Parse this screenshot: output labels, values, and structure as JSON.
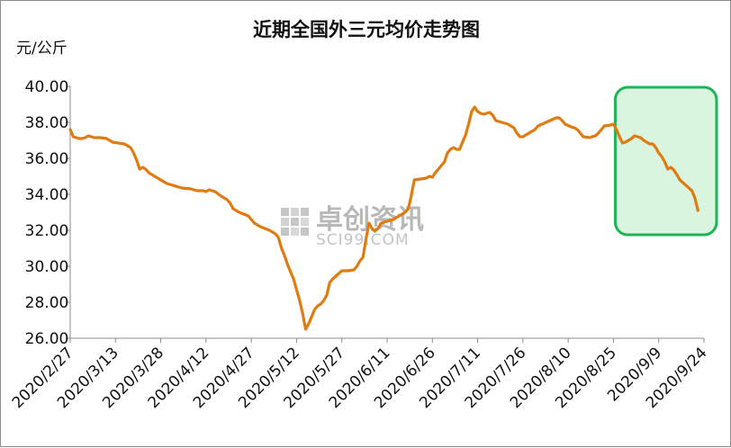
{
  "chart_data": {
    "type": "line",
    "title": "近期全国外三元均价走势图",
    "ylabel": "元/公斤",
    "xlabel": "",
    "ylim": [
      26,
      40
    ],
    "yticks": [
      "26.00",
      "28.00",
      "30.00",
      "32.00",
      "34.00",
      "36.00",
      "38.00",
      "40.00"
    ],
    "xticks": [
      "2020/2/27",
      "2020/3/13",
      "2020/3/28",
      "2020/4/12",
      "2020/4/27",
      "2020/5/12",
      "2020/5/27",
      "2020/6/11",
      "2020/6/26",
      "2020/7/11",
      "2020/7/26",
      "2020/8/10",
      "2020/8/25",
      "2020/9/9",
      "2020/9/24"
    ],
    "xrange": [
      "2020-02-27",
      "2020-09-24"
    ],
    "grid": false,
    "legend": "none",
    "series": [
      {
        "color": "#e07b10",
        "points": [
          [
            "2020-02-27",
            37.6
          ],
          [
            "2020-02-28",
            37.2
          ],
          [
            "2020-02-29",
            37.15
          ],
          [
            "2020-03-01",
            37.1
          ],
          [
            "2020-03-02",
            37.1
          ],
          [
            "2020-03-03",
            37.15
          ],
          [
            "2020-03-04",
            37.25
          ],
          [
            "2020-03-05",
            37.2
          ],
          [
            "2020-03-06",
            37.15
          ],
          [
            "2020-03-08",
            37.15
          ],
          [
            "2020-03-10",
            37.1
          ],
          [
            "2020-03-11",
            37.0
          ],
          [
            "2020-03-12",
            36.9
          ],
          [
            "2020-03-14",
            36.85
          ],
          [
            "2020-03-16",
            36.8
          ],
          [
            "2020-03-18",
            36.6
          ],
          [
            "2020-03-19",
            36.3
          ],
          [
            "2020-03-20",
            35.9
          ],
          [
            "2020-03-21",
            35.4
          ],
          [
            "2020-03-22",
            35.5
          ],
          [
            "2020-03-23",
            35.4
          ],
          [
            "2020-03-24",
            35.2
          ],
          [
            "2020-03-26",
            35.0
          ],
          [
            "2020-03-28",
            34.8
          ],
          [
            "2020-03-30",
            34.6
          ],
          [
            "2020-04-01",
            34.5
          ],
          [
            "2020-04-04",
            34.35
          ],
          [
            "2020-04-07",
            34.3
          ],
          [
            "2020-04-09",
            34.2
          ],
          [
            "2020-04-11",
            34.2
          ],
          [
            "2020-04-12",
            34.15
          ],
          [
            "2020-04-13",
            34.25
          ],
          [
            "2020-04-15",
            34.15
          ],
          [
            "2020-04-17",
            33.9
          ],
          [
            "2020-04-19",
            33.7
          ],
          [
            "2020-04-20",
            33.5
          ],
          [
            "2020-04-21",
            33.2
          ],
          [
            "2020-04-23",
            33.0
          ],
          [
            "2020-04-26",
            32.8
          ],
          [
            "2020-04-28",
            32.4
          ],
          [
            "2020-04-30",
            32.2
          ],
          [
            "2020-05-03",
            32.0
          ],
          [
            "2020-05-05",
            31.8
          ],
          [
            "2020-05-06",
            31.6
          ],
          [
            "2020-05-07",
            31.0
          ],
          [
            "2020-05-08",
            30.6
          ],
          [
            "2020-05-09",
            30.1
          ],
          [
            "2020-05-10",
            29.7
          ],
          [
            "2020-05-11",
            29.3
          ],
          [
            "2020-05-12",
            28.7
          ],
          [
            "2020-05-13",
            28.1
          ],
          [
            "2020-05-14",
            27.4
          ],
          [
            "2020-05-15",
            26.5
          ],
          [
            "2020-05-16",
            26.8
          ],
          [
            "2020-05-17",
            27.2
          ],
          [
            "2020-05-18",
            27.6
          ],
          [
            "2020-05-19",
            27.8
          ],
          [
            "2020-05-20",
            27.9
          ],
          [
            "2020-05-21",
            28.1
          ],
          [
            "2020-05-22",
            28.4
          ],
          [
            "2020-05-23",
            29.1
          ],
          [
            "2020-05-24",
            29.3
          ],
          [
            "2020-05-26",
            29.6
          ],
          [
            "2020-05-27",
            29.75
          ],
          [
            "2020-05-29",
            29.75
          ],
          [
            "2020-05-31",
            29.8
          ],
          [
            "2020-06-01",
            30.0
          ],
          [
            "2020-06-02",
            30.3
          ],
          [
            "2020-06-03",
            30.5
          ],
          [
            "2020-06-04",
            31.5
          ],
          [
            "2020-06-05",
            32.4
          ],
          [
            "2020-06-06",
            32.1
          ],
          [
            "2020-06-07",
            31.95
          ],
          [
            "2020-06-08",
            32.1
          ],
          [
            "2020-06-09",
            32.4
          ],
          [
            "2020-06-11",
            32.5
          ],
          [
            "2020-06-13",
            32.6
          ],
          [
            "2020-06-15",
            32.8
          ],
          [
            "2020-06-17",
            33.0
          ],
          [
            "2020-06-18",
            33.2
          ],
          [
            "2020-06-19",
            33.9
          ],
          [
            "2020-06-20",
            34.8
          ],
          [
            "2020-06-22",
            34.85
          ],
          [
            "2020-06-24",
            34.9
          ],
          [
            "2020-06-25",
            35.0
          ],
          [
            "2020-06-26",
            34.95
          ],
          [
            "2020-06-27",
            35.2
          ],
          [
            "2020-06-29",
            35.6
          ],
          [
            "2020-06-30",
            35.8
          ],
          [
            "2020-07-01",
            36.3
          ],
          [
            "2020-07-02",
            36.5
          ],
          [
            "2020-07-03",
            36.6
          ],
          [
            "2020-07-04",
            36.5
          ],
          [
            "2020-07-05",
            36.5
          ],
          [
            "2020-07-06",
            36.9
          ],
          [
            "2020-07-07",
            37.3
          ],
          [
            "2020-07-08",
            37.9
          ],
          [
            "2020-07-09",
            38.6
          ],
          [
            "2020-07-10",
            38.85
          ],
          [
            "2020-07-11",
            38.6
          ],
          [
            "2020-07-12",
            38.5
          ],
          [
            "2020-07-13",
            38.45
          ],
          [
            "2020-07-14",
            38.5
          ],
          [
            "2020-07-15",
            38.55
          ],
          [
            "2020-07-16",
            38.4
          ],
          [
            "2020-07-17",
            38.1
          ],
          [
            "2020-07-19",
            38.0
          ],
          [
            "2020-07-21",
            37.9
          ],
          [
            "2020-07-23",
            37.7
          ],
          [
            "2020-07-24",
            37.4
          ],
          [
            "2020-07-25",
            37.2
          ],
          [
            "2020-07-26",
            37.2
          ],
          [
            "2020-07-27",
            37.3
          ],
          [
            "2020-07-29",
            37.5
          ],
          [
            "2020-07-30",
            37.6
          ],
          [
            "2020-07-31",
            37.8
          ],
          [
            "2020-08-02",
            37.95
          ],
          [
            "2020-08-04",
            38.1
          ],
          [
            "2020-08-06",
            38.25
          ],
          [
            "2020-08-07",
            38.25
          ],
          [
            "2020-08-08",
            38.1
          ],
          [
            "2020-08-09",
            37.9
          ],
          [
            "2020-08-11",
            37.75
          ],
          [
            "2020-08-12",
            37.7
          ],
          [
            "2020-08-13",
            37.6
          ],
          [
            "2020-08-14",
            37.4
          ],
          [
            "2020-08-15",
            37.2
          ],
          [
            "2020-08-17",
            37.15
          ],
          [
            "2020-08-18",
            37.2
          ],
          [
            "2020-08-19",
            37.25
          ],
          [
            "2020-08-20",
            37.4
          ],
          [
            "2020-08-21",
            37.6
          ],
          [
            "2020-08-22",
            37.8
          ],
          [
            "2020-08-24",
            37.85
          ],
          [
            "2020-08-25",
            37.9
          ],
          [
            "2020-08-26",
            37.6
          ],
          [
            "2020-08-27",
            37.2
          ],
          [
            "2020-08-28",
            36.85
          ],
          [
            "2020-08-29",
            36.9
          ],
          [
            "2020-08-30",
            37.0
          ],
          [
            "2020-08-31",
            37.1
          ],
          [
            "2020-09-01",
            37.25
          ],
          [
            "2020-09-02",
            37.2
          ],
          [
            "2020-09-03",
            37.15
          ],
          [
            "2020-09-04",
            37.0
          ],
          [
            "2020-09-05",
            36.9
          ],
          [
            "2020-09-06",
            36.8
          ],
          [
            "2020-09-07",
            36.8
          ],
          [
            "2020-09-08",
            36.6
          ],
          [
            "2020-09-09",
            36.3
          ],
          [
            "2020-09-10",
            36.1
          ],
          [
            "2020-09-11",
            35.8
          ],
          [
            "2020-09-12",
            35.4
          ],
          [
            "2020-09-13",
            35.5
          ],
          [
            "2020-09-14",
            35.35
          ],
          [
            "2020-09-15",
            35.1
          ],
          [
            "2020-09-16",
            34.8
          ],
          [
            "2020-09-18",
            34.5
          ],
          [
            "2020-09-20",
            34.2
          ],
          [
            "2020-09-21",
            33.8
          ],
          [
            "2020-09-22",
            33.1
          ]
        ]
      }
    ],
    "highlight": {
      "x_from": "2020-08-25",
      "x_to": "2020-09-24",
      "color": "#1fb456",
      "fill": "#d9f5e0"
    }
  },
  "watermark": {
    "main": "卓创资讯",
    "sub": "SCI99.COM"
  },
  "colors": {
    "line": "#e07b10",
    "axis": "#8c8c8c",
    "highlight_border": "#1fb456",
    "highlight_fill": "#d9f5e0"
  }
}
